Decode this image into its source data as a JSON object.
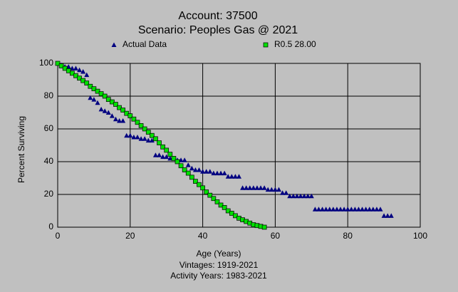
{
  "chart_data": {
    "type": "scatter",
    "title": "Account: 37500",
    "subtitle": "Scenario: Peoples Gas @ 2021",
    "x_label": "Age (Years)",
    "y_label": "Percent Surviving",
    "notes": [
      "Vintages: 1919-2021",
      "Activity Years: 1983-2021"
    ],
    "xlim": [
      0,
      100
    ],
    "xticks": [
      0,
      20,
      40,
      60,
      80,
      100
    ],
    "ylim": [
      0,
      100
    ],
    "yticks": [
      0,
      20,
      40,
      60,
      80,
      100
    ],
    "grid": true,
    "series": [
      {
        "name": "Actual Data",
        "color": "#000080",
        "marker": "triangle",
        "x": [
          0,
          1,
          2,
          3,
          4,
          5,
          6,
          7,
          8,
          9,
          10,
          11,
          12,
          13,
          14,
          15,
          16,
          17,
          18,
          19,
          20,
          21,
          22,
          23,
          24,
          25,
          26,
          27,
          28,
          29,
          30,
          31,
          32,
          33,
          34,
          35,
          36,
          37,
          38,
          39,
          40,
          41,
          42,
          43,
          44,
          45,
          46,
          47,
          48,
          49,
          50,
          51,
          52,
          53,
          54,
          55,
          56,
          57,
          58,
          59,
          60,
          61,
          62,
          63,
          64,
          65,
          66,
          67,
          68,
          69,
          70,
          71,
          72,
          73,
          74,
          75,
          76,
          77,
          78,
          79,
          80,
          81,
          82,
          83,
          84,
          85,
          86,
          87,
          88,
          89,
          90,
          91,
          92
        ],
        "values": [
          100,
          99,
          98,
          98,
          97,
          97,
          96,
          95,
          93,
          79,
          78,
          76,
          72,
          71,
          70,
          68,
          66,
          65,
          65,
          56,
          56,
          55,
          55,
          54,
          54,
          53,
          53,
          44,
          44,
          43,
          43,
          42,
          42,
          41,
          41,
          41,
          38,
          36,
          35,
          35,
          34,
          34,
          34,
          33,
          33,
          33,
          33,
          31,
          31,
          31,
          31,
          24,
          24,
          24,
          24,
          24,
          24,
          24,
          23,
          23,
          23,
          23,
          21,
          21,
          19,
          19,
          19,
          19,
          19,
          19,
          19,
          11,
          11,
          11,
          11,
          11,
          11,
          11,
          11,
          11,
          11,
          11,
          11,
          11,
          11,
          11,
          11,
          11,
          11,
          11,
          7,
          7,
          7
        ]
      },
      {
        "name": "R0.5 28.00",
        "color": "#00e000",
        "marker": "square",
        "x": [
          0,
          1,
          2,
          3,
          4,
          5,
          6,
          7,
          8,
          9,
          10,
          11,
          12,
          13,
          14,
          15,
          16,
          17,
          18,
          19,
          20,
          21,
          22,
          23,
          24,
          25,
          26,
          27,
          28,
          29,
          30,
          31,
          32,
          33,
          34,
          35,
          36,
          37,
          38,
          39,
          40,
          41,
          42,
          43,
          44,
          45,
          46,
          47,
          48,
          49,
          50,
          51,
          52,
          53,
          54,
          55,
          56,
          57
        ],
        "values": [
          100,
          98.5,
          97,
          95.5,
          94,
          92.5,
          91,
          89.5,
          88,
          86,
          84.5,
          83,
          81.5,
          80,
          78,
          76.5,
          75,
          73,
          71.5,
          69.5,
          68,
          66,
          64,
          62,
          60,
          58,
          56,
          54,
          51.5,
          49,
          47,
          44.5,
          42,
          40,
          37.5,
          35,
          33,
          30.5,
          28,
          26,
          24,
          21.5,
          19.5,
          17.5,
          15.5,
          13.5,
          12,
          10,
          8.5,
          7,
          5.5,
          4.5,
          3.5,
          2.5,
          1.5,
          1,
          0.5,
          0
        ]
      }
    ]
  }
}
